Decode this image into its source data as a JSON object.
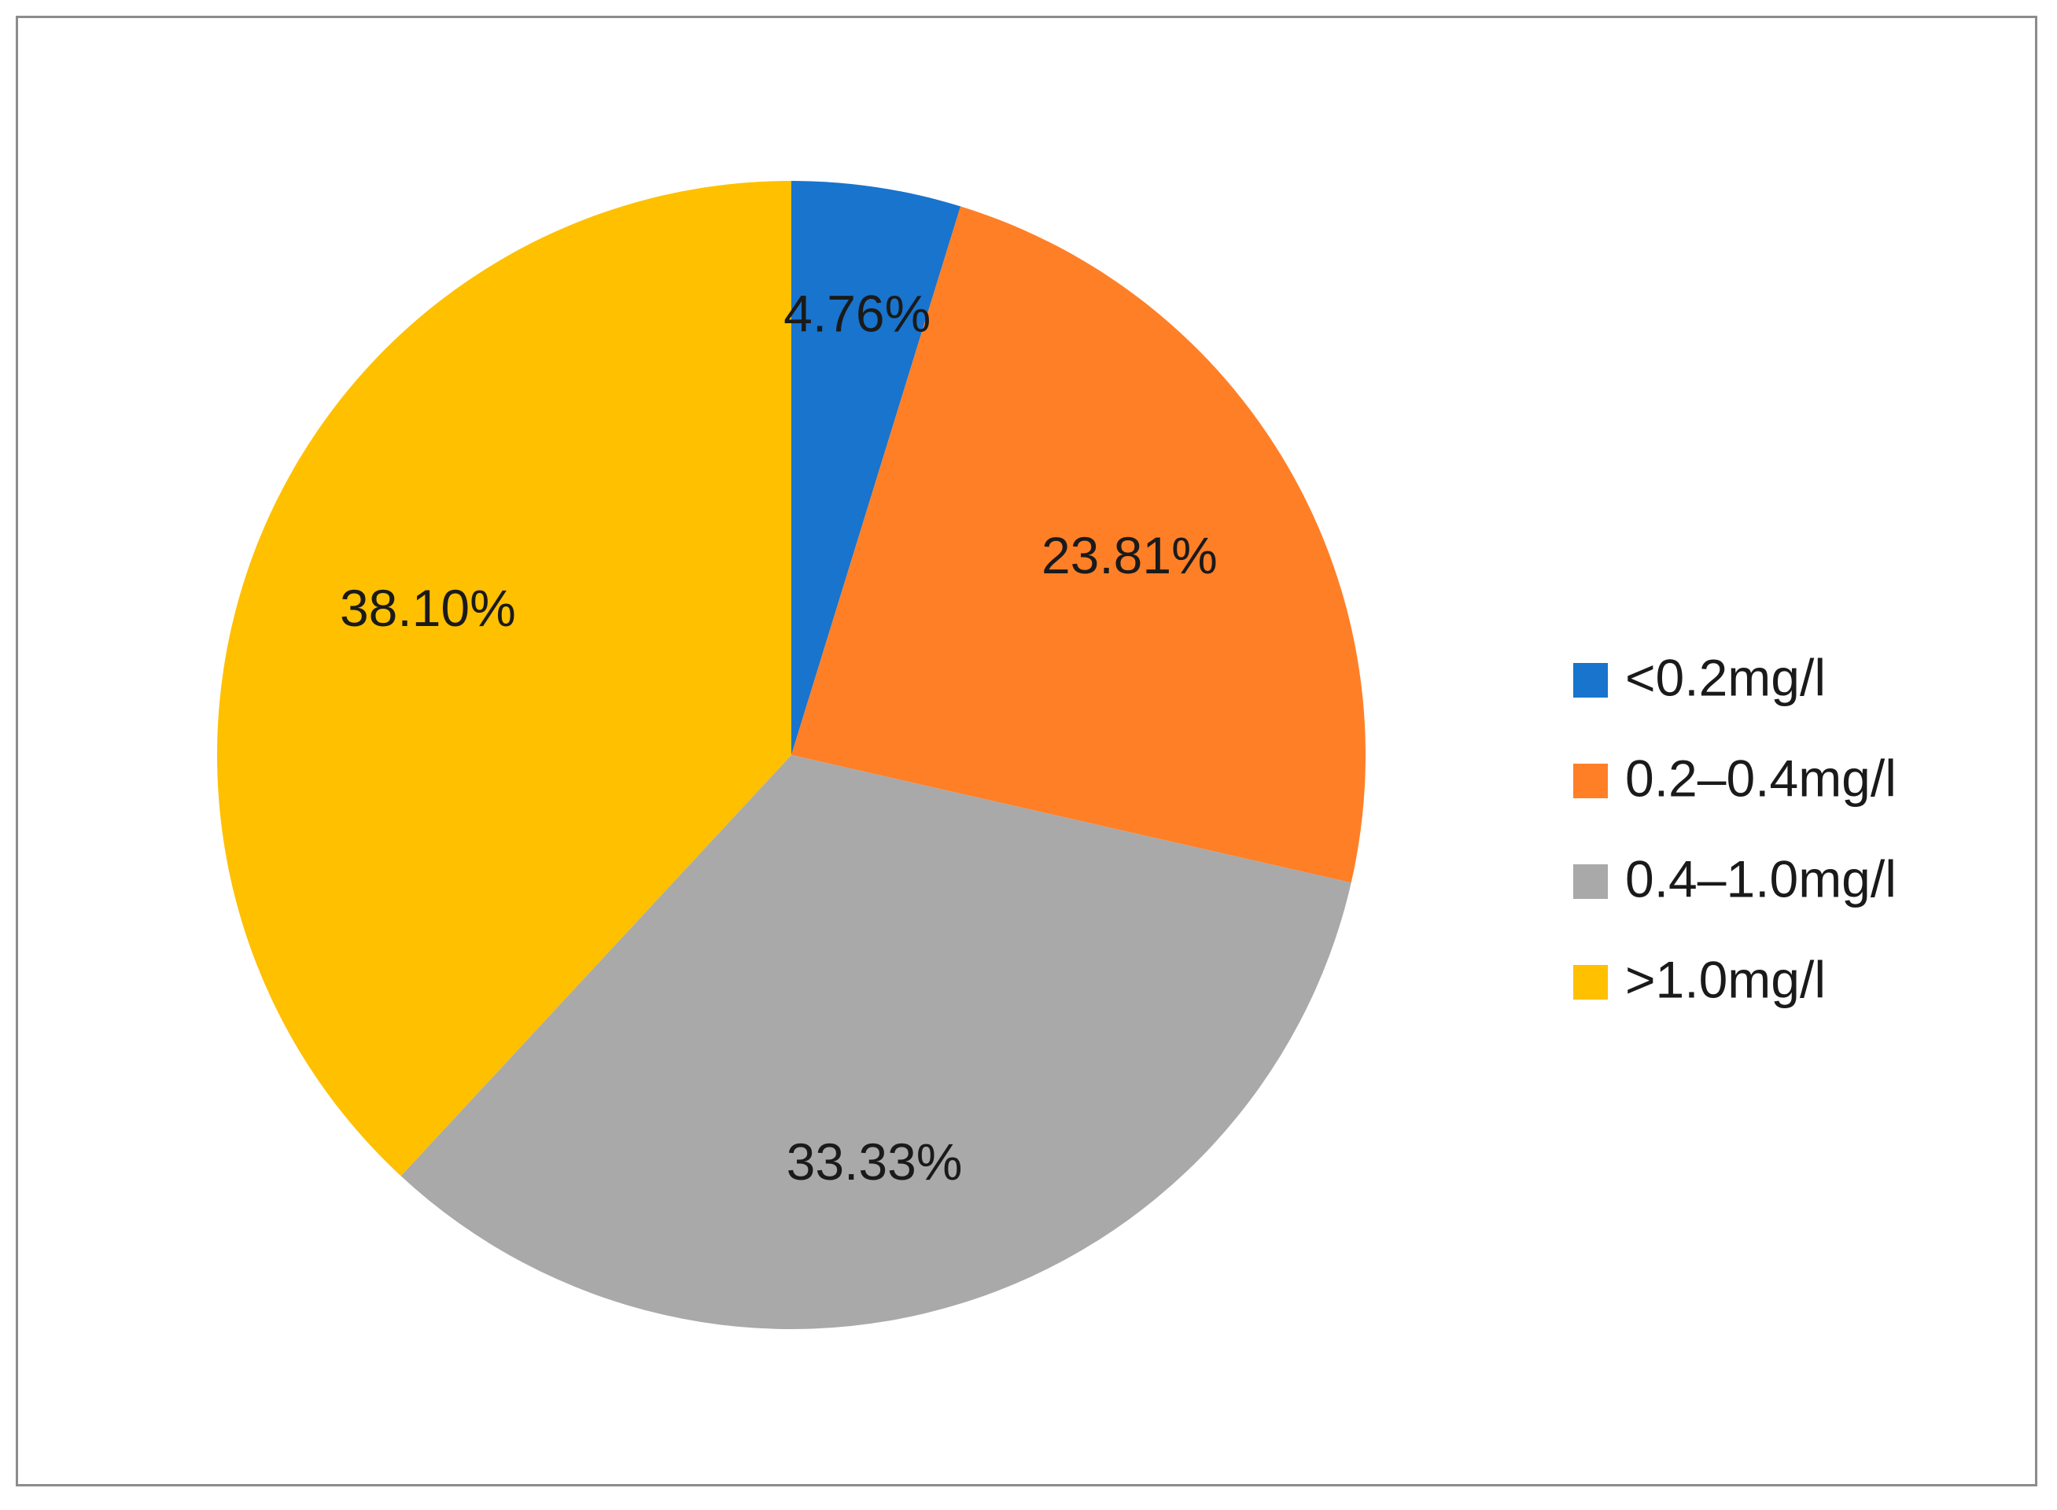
{
  "chart_data": {
    "type": "pie",
    "categories": [
      "<0.2mg/l",
      "0.2–0.4mg/l",
      "0.4–1.0mg/l",
      ">1.0mg/l"
    ],
    "values": [
      4.76,
      23.81,
      33.33,
      38.1
    ],
    "data_labels": [
      "4.76%",
      "23.81%",
      "33.33%",
      "38.10%"
    ],
    "colors": [
      "#1874cd",
      "#ff7f27",
      "#a9a9a9",
      "#ffc000"
    ],
    "start_angle_deg": 0,
    "direction": "clockwise",
    "legend_position": "right",
    "title": ""
  }
}
